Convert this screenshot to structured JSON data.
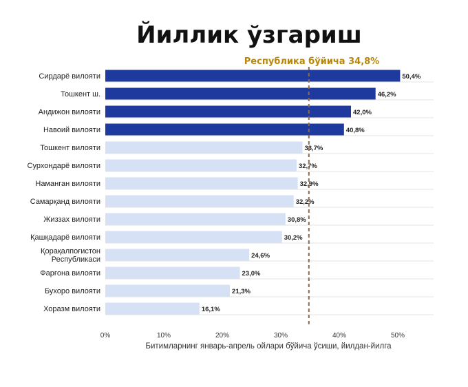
{
  "chart_data": {
    "type": "bar",
    "orientation": "horizontal",
    "title": "Йиллик ўзгариш",
    "xlabel": "Битимларнинг январь-апрель ойлари бўйича ўсиши, йилдан-йилга",
    "categories": [
      "Сирдарё вилояти",
      "Тошкент ш.",
      "Андижон вилояти",
      "Навоий вилояти",
      "Тошкент вилояти",
      "Сурхондарё вилояти",
      "Наманган вилояти",
      "Самарқанд вилояти",
      "Жиззах вилояти",
      "Қашқадарё вилояти",
      "Қорақалпоғистон Республикаси",
      "Фарғона вилояти",
      "Бухоро вилояти",
      "Хоразм вилояти"
    ],
    "values": [
      50.4,
      46.2,
      42.0,
      40.8,
      33.7,
      32.7,
      32.9,
      32.2,
      30.8,
      30.2,
      24.6,
      23.0,
      21.3,
      16.1
    ],
    "value_labels": [
      "50,4%",
      "46,2%",
      "42,0%",
      "40,8%",
      "33,7%",
      "32,7%",
      "32,9%",
      "32,2%",
      "30,8%",
      "30,2%",
      "24,6%",
      "23,0%",
      "21,3%",
      "16,1%"
    ],
    "xticks": [
      0,
      10,
      20,
      30,
      40,
      50
    ],
    "xtick_labels": [
      "0%",
      "10%",
      "20%",
      "30%",
      "40%",
      "50%"
    ],
    "xlim": [
      0,
      55
    ],
    "reference_line": {
      "value": 34.8,
      "label": "Республика бўйича 34,8%",
      "style": "dashed"
    },
    "grid": true,
    "colors": {
      "above_average": "#1f3a9e",
      "below_average": "#d6e1f5",
      "reference": "#b8860b",
      "reference_line": "#8b6a50",
      "grid": "#e3e3e3"
    }
  }
}
